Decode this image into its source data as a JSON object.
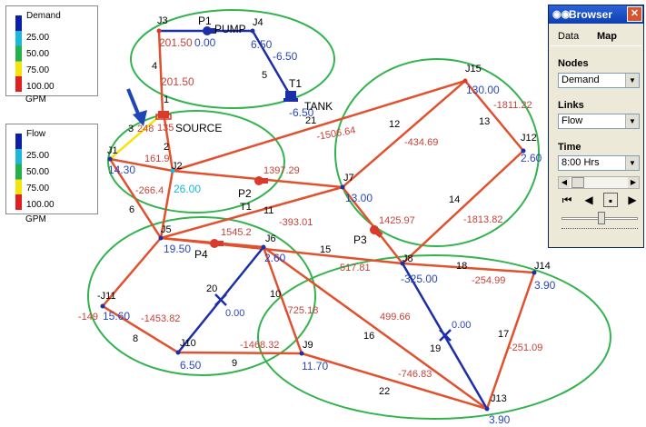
{
  "legend_demand": {
    "title": "Demand",
    "levels": [
      "25.00",
      "50.00",
      "75.00",
      "100.00"
    ],
    "unit": "GPM",
    "colors": [
      "#0b1fa8",
      "#1cb8d8",
      "#22b14c",
      "#f5e30c",
      "#e02020"
    ]
  },
  "legend_flow": {
    "title": "Flow",
    "levels": [
      "25.00",
      "50.00",
      "75.00",
      "100.00"
    ],
    "unit": "GPM",
    "colors": [
      "#0b1fa8",
      "#1cb8d8",
      "#22b14c",
      "#f5e30c",
      "#e02020"
    ]
  },
  "browser": {
    "title": "Browser",
    "tabs": [
      "Data",
      "Map"
    ],
    "nodes_label": "Nodes",
    "nodes_value": "Demand",
    "links_label": "Links",
    "links_value": "Flow",
    "time_label": "Time",
    "time_value": "8:00 Hrs"
  },
  "colors": {
    "high_link": "#e0512e",
    "low_link": "#1c2ea8",
    "node": "#1c2ea8",
    "flow_text": "#c6433a",
    "node_text": "#2b47b8",
    "ellipse": "#33b34f",
    "pointer_arrow": "#1f46b8"
  },
  "nodes": [
    {
      "id": "J3",
      "value": "201.50"
    },
    {
      "id": "P1"
    },
    {
      "id": "J4",
      "value": "6.50"
    },
    {
      "id": "1"
    },
    {
      "id": "T1",
      "value": "-6.50"
    },
    {
      "id": "J15",
      "value": "130.00"
    },
    {
      "id": "J12",
      "value": "2.60"
    },
    {
      "id": "J1",
      "value": "14.30"
    },
    {
      "id": "J2",
      "value": "26.00"
    },
    {
      "id": "J7",
      "value": "13.00"
    },
    {
      "id": "J5",
      "value": "19.50"
    },
    {
      "id": "J6",
      "value": "2.60"
    },
    {
      "id": "J8",
      "value": "-325.00"
    },
    {
      "id": "J14",
      "value": "3.90"
    },
    {
      "id": "J11",
      "value": "15.60"
    },
    {
      "id": "J10",
      "value": "6.50"
    },
    {
      "id": "J9",
      "value": "11.70"
    },
    {
      "id": "J13",
      "value": "3.90"
    }
  ],
  "links": [
    {
      "id": "4",
      "flow": "201.50"
    },
    {
      "id": "",
      "flow": "0.00"
    },
    {
      "id": "5",
      "flow": "-6.50"
    },
    {
      "id": "3",
      "flow": "248"
    },
    {
      "id": "2",
      "flow": "161.9"
    },
    {
      "id": "",
      "flow": "-1506.64"
    },
    {
      "id": "6",
      "flow": ""
    },
    {
      "id": "",
      "flow": "-266.4"
    },
    {
      "id": "",
      "flow": "1397.29"
    },
    {
      "id": "12",
      "flow": "-434.69"
    },
    {
      "id": "13",
      "flow": "-1811.22"
    },
    {
      "id": "14",
      "flow": "-1813.82"
    },
    {
      "id": "11",
      "flow": "-393.01"
    },
    {
      "id": "",
      "flow": "1545.2"
    },
    {
      "id": "15",
      "flow": "517.81"
    },
    {
      "id": "",
      "flow": "1425.97"
    },
    {
      "id": "18",
      "flow": "-254.99"
    },
    {
      "id": "10",
      "flow": "-725.18"
    },
    {
      "id": "20",
      "flow": "0.00"
    },
    {
      "id": "7",
      "flow": "-1453.82"
    },
    {
      "id": "8",
      "flow": "-149"
    },
    {
      "id": "9",
      "flow": "-1468.32"
    },
    {
      "id": "16",
      "flow": "499.66"
    },
    {
      "id": "19",
      "flow": "0.00"
    },
    {
      "id": "17",
      "flow": "-251.09"
    },
    {
      "id": "22",
      "flow": "-746.83"
    }
  ],
  "labels": {
    "pump": "PUMP",
    "tank": "TANK",
    "source": "SOURCE",
    "p1": "P1",
    "p2": "P2",
    "p3": "P3",
    "p4": "P4",
    "t1b": "T1",
    "t1": "T1",
    "n21": "21",
    "n1": "1",
    "low": "135"
  }
}
